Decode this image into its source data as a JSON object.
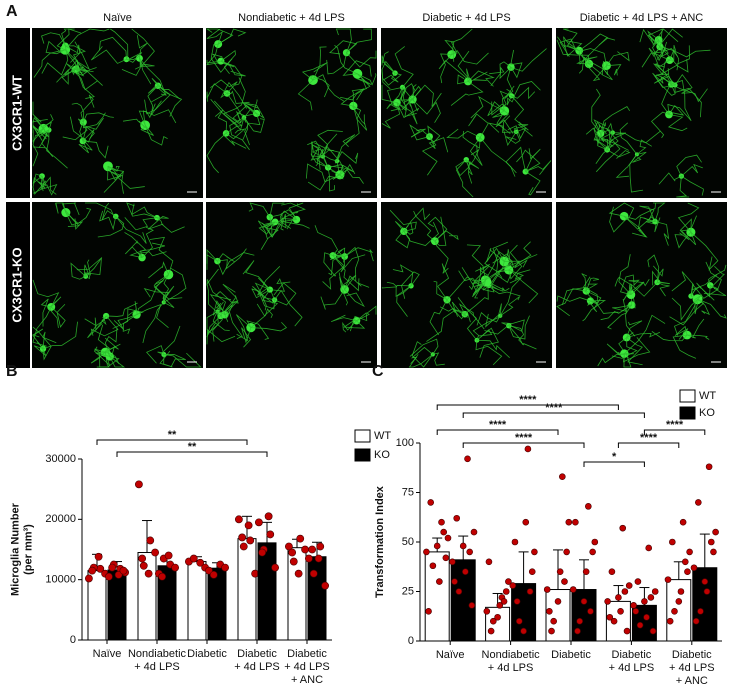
{
  "panel_a": {
    "label": "A",
    "columns": [
      "Naïve",
      "Nondiabetic + 4d LPS",
      "Diabetic + 4d LPS",
      "Diabetic + 4d LPS + ANC"
    ],
    "rows": [
      "CX3CR1-WT",
      "CX3CR1-KO"
    ]
  },
  "chart_data": [
    {
      "type": "bar",
      "panel": "B",
      "ylabel": [
        "Microglia Number",
        "(per mm³)"
      ],
      "categories": [
        [
          "Naïve"
        ],
        [
          "Nondiabetic",
          "+ 4d LPS"
        ],
        [
          "Diabetic"
        ],
        [
          "Diabetic",
          "+ 4d LPS"
        ],
        [
          "Diabetic",
          "+ 4d LPS",
          "+ ANC"
        ]
      ],
      "ylim": [
        0,
        30000
      ],
      "yticks": [
        0,
        10000,
        20000,
        30000
      ],
      "series": [
        {
          "name": "WT",
          "color": "#ffffff",
          "values": [
            11500,
            14500,
            13000,
            16800,
            15300
          ],
          "errors": [
            2700,
            5300,
            800,
            3700,
            1400
          ],
          "points": [
            [
              10200,
              11800,
              12000,
              11000,
              13800,
              11500
            ],
            [
              25800,
              16500,
              12300,
              14500,
              11000,
              13500
            ],
            [
              13000,
              12800,
              13500,
              12000
            ],
            [
              20000,
              16500,
              15500,
              11000,
              19000,
              17000
            ],
            [
              15500,
              16800,
              13000,
              15000,
              11000,
              14500
            ]
          ]
        },
        {
          "name": "KO",
          "color": "#000000",
          "values": [
            11600,
            12300,
            11900,
            16100,
            13800
          ],
          "errors": [
            1400,
            1700,
            900,
            3400,
            2400
          ],
          "points": [
            [
              10500,
              11800,
              12500,
              11200,
              10800,
              12000,
              11500
            ],
            [
              11000,
              12500,
              13500,
              12000,
              14000,
              10500
            ],
            [
              11500,
              12500,
              10800,
              12000
            ],
            [
              19500,
              17500,
              15000,
              12000,
              20500,
              14500
            ],
            [
              13500,
              15500,
              11000,
              9000,
              13500,
              15000
            ]
          ]
        }
      ],
      "point_color": "#c00000",
      "annotations": [
        {
          "text": "**",
          "from": [
            0,
            0
          ],
          "to": [
            3,
            0
          ]
        },
        {
          "text": "**",
          "from": [
            0,
            1
          ],
          "to": [
            3,
            1
          ]
        }
      ]
    },
    {
      "type": "bar",
      "panel": "C",
      "ylabel": [
        "Transformation Index"
      ],
      "categories": [
        [
          "Naïve"
        ],
        [
          "Nondiabetic",
          "+ 4d LPS"
        ],
        [
          "Diabetic"
        ],
        [
          "Diabetic",
          "+ 4d LPS"
        ],
        [
          "Diabetic",
          "+ 4d LPS",
          "+ ANC"
        ]
      ],
      "ylim": [
        0,
        100
      ],
      "yticks": [
        0,
        25,
        50,
        75,
        100
      ],
      "series": [
        {
          "name": "WT",
          "color": "#ffffff",
          "values": [
            45,
            17,
            26,
            20,
            31
          ],
          "errors": [
            7,
            7,
            20,
            8,
            9
          ],
          "points": [
            [
              45,
              60,
              38,
              52,
              30,
              70,
              42,
              48,
              15,
              55
            ],
            [
              15,
              22,
              10,
              30,
              18,
              5,
              25,
              12,
              40,
              20
            ],
            [
              26,
              83,
              10,
              60,
              35,
              5,
              45,
              20,
              15,
              30
            ],
            [
              20,
              57,
              10,
              28,
              15,
              35,
              5,
              22,
              12,
              25
            ],
            [
              31,
              60,
              15,
              45,
              25,
              50,
              35,
              20,
              10,
              40
            ]
          ]
        },
        {
          "name": "KO",
          "color": "#000000",
          "values": [
            41,
            29,
            26,
            18,
            37
          ],
          "errors": [
            12,
            16,
            15,
            9,
            17
          ],
          "points": [
            [
              40,
              92,
              25,
              55,
              35,
              62,
              18,
              48,
              30,
              45
            ],
            [
              28,
              97,
              10,
              45,
              60,
              20,
              35,
              5,
              50,
              25
            ],
            [
              26,
              68,
              10,
              50,
              35,
              5,
              45,
              20,
              60,
              15
            ],
            [
              18,
              47,
              8,
              25,
              12,
              30,
              5,
              20,
              15,
              22
            ],
            [
              37,
              88,
              15,
              55,
              25,
              70,
              45,
              30,
              10,
              50
            ]
          ]
        }
      ],
      "point_color": "#c00000",
      "annotations": [
        {
          "text": "****",
          "from": [
            0,
            0
          ],
          "to": [
            3,
            0
          ]
        },
        {
          "text": "****",
          "from": [
            0,
            1
          ],
          "to": [
            3,
            1
          ]
        },
        {
          "text": "****",
          "from": [
            0,
            0
          ],
          "to": [
            2,
            0
          ]
        },
        {
          "text": "****",
          "from": [
            0,
            1
          ],
          "to": [
            2,
            1
          ]
        },
        {
          "text": "****",
          "from": [
            3,
            1
          ],
          "to": [
            4,
            1
          ]
        },
        {
          "text": "****",
          "from": [
            3,
            0
          ],
          "to": [
            4,
            0
          ]
        },
        {
          "text": "*",
          "from": [
            2,
            1
          ],
          "to": [
            3,
            1
          ]
        }
      ]
    }
  ]
}
